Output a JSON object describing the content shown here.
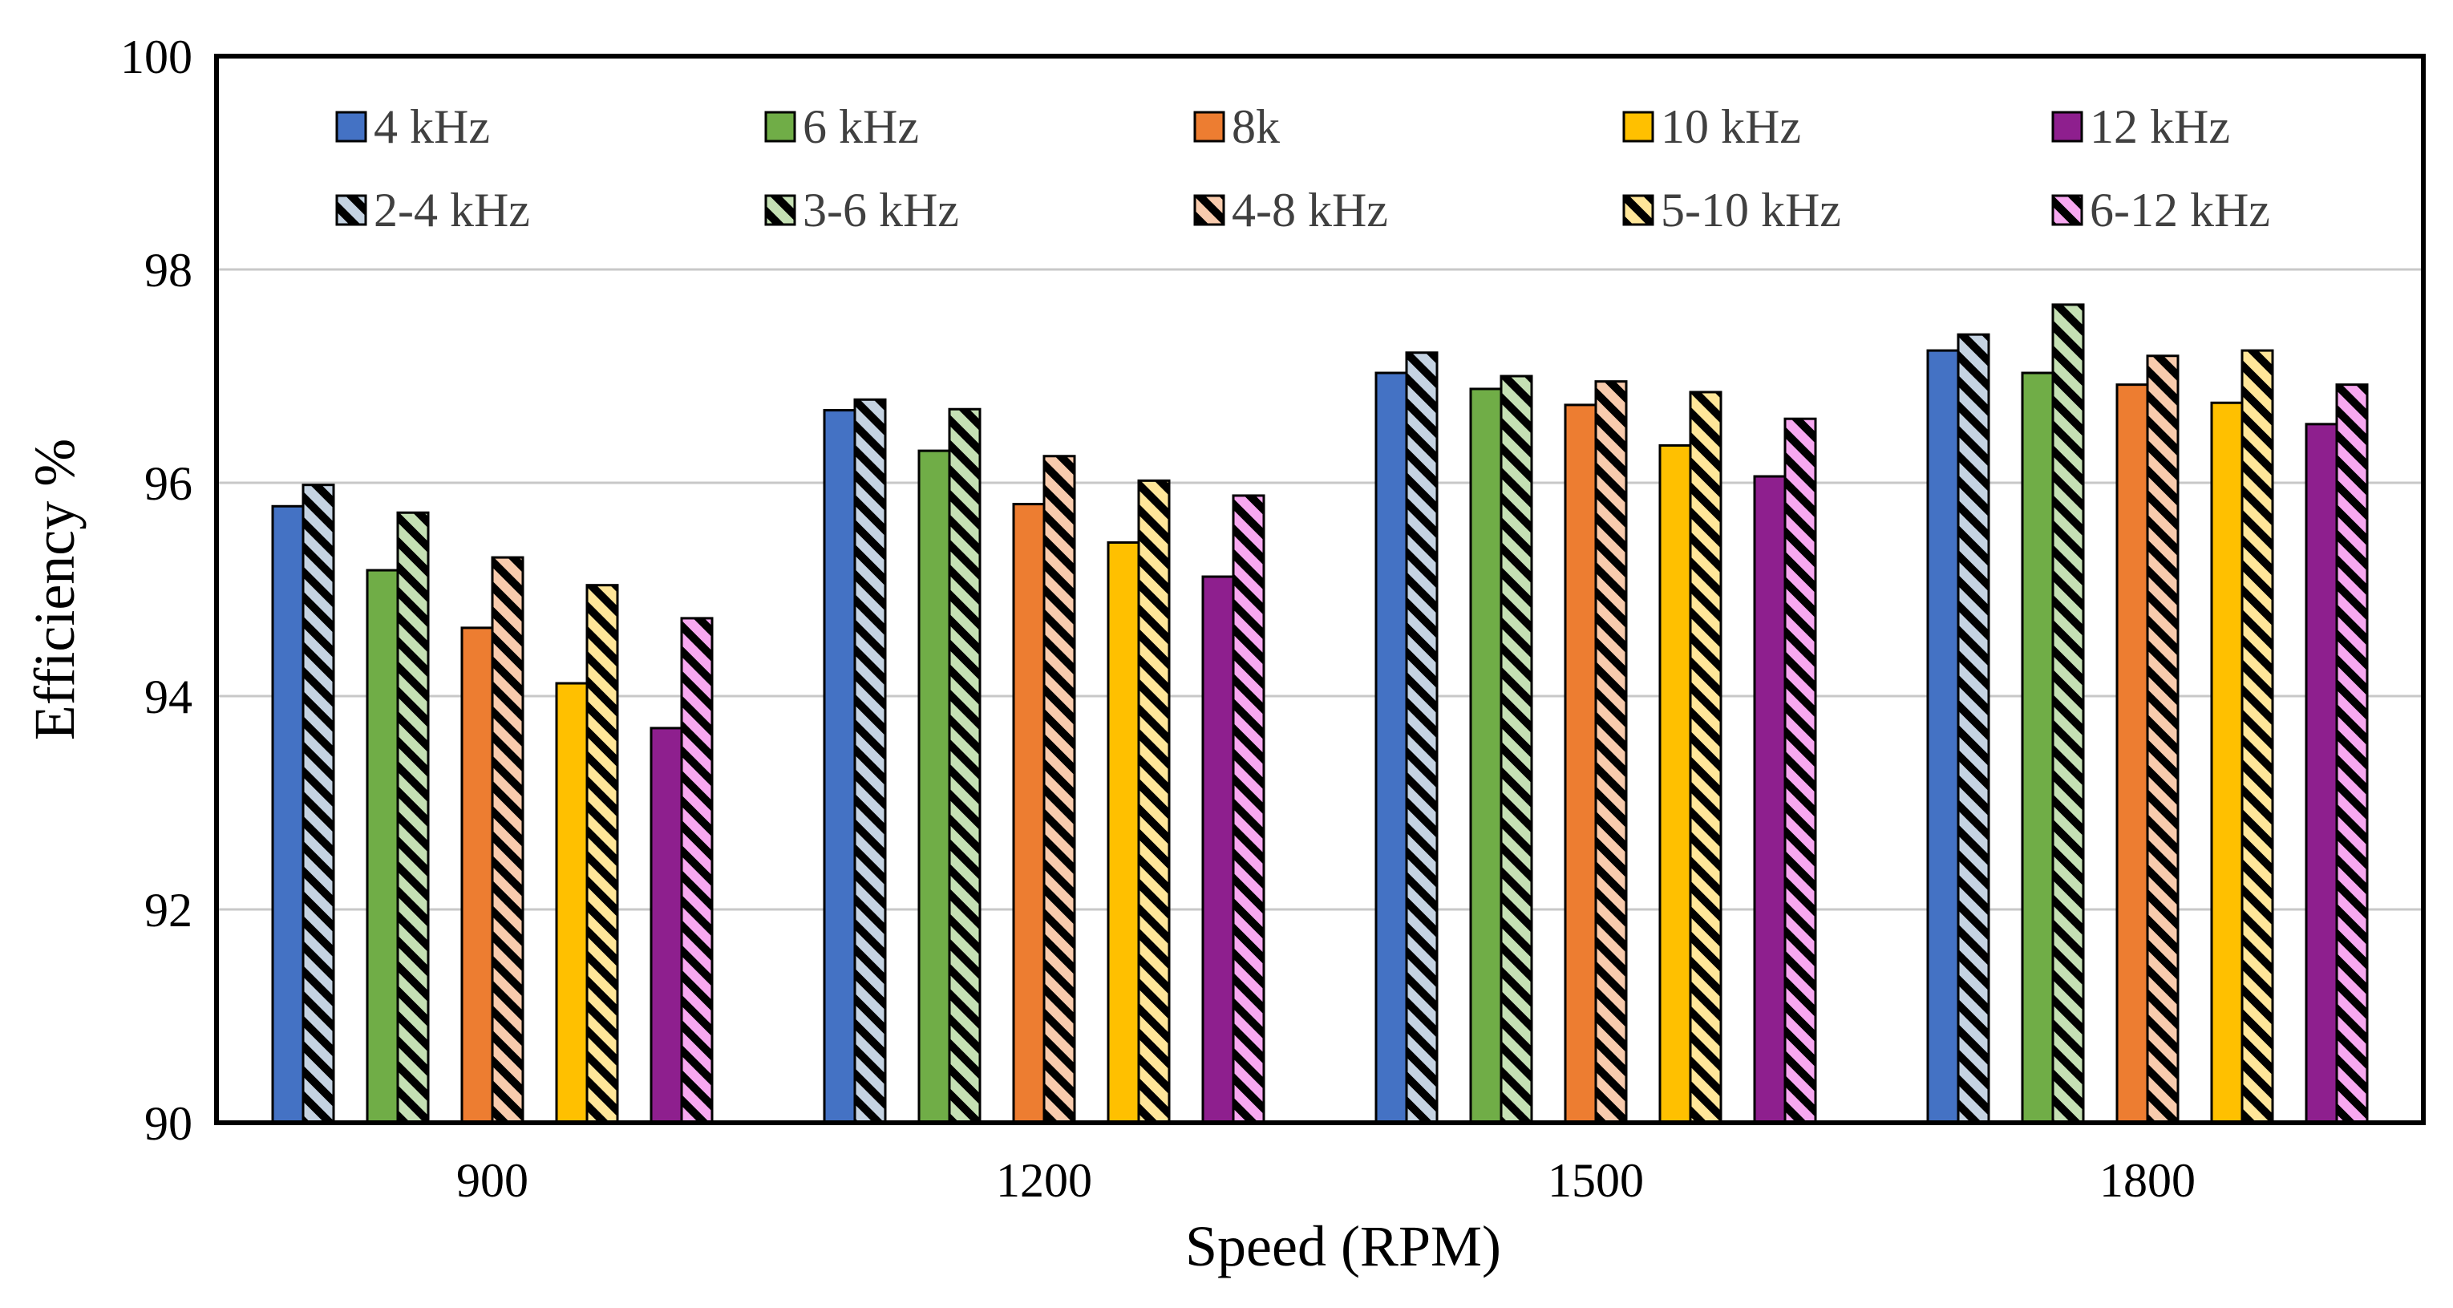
{
  "chart_data": {
    "type": "bar",
    "title": "",
    "xlabel": "Speed (RPM)",
    "ylabel": "Efficiency %",
    "ylim": [
      90,
      100
    ],
    "yticks": [
      "90",
      "92",
      "94",
      "96",
      "98",
      "100"
    ],
    "grid": true,
    "legend_position": "top",
    "categories": [
      "900",
      "1200",
      "1500",
      "1800"
    ],
    "series": [
      {
        "name": "4 kHz",
        "color": "#4472C4",
        "hatched": false,
        "values": [
          95.78,
          96.68,
          97.03,
          97.24
        ]
      },
      {
        "name": "2-4 kHz",
        "color": "#C5D3E2",
        "hatched": true,
        "values": [
          95.98,
          96.78,
          97.22,
          97.39
        ]
      },
      {
        "name": "6 kHz",
        "color": "#70AD47",
        "hatched": false,
        "values": [
          95.18,
          96.3,
          96.88,
          97.03
        ]
      },
      {
        "name": "3-6 kHz",
        "color": "#C5E0B4",
        "hatched": true,
        "values": [
          95.72,
          96.69,
          97.0,
          97.67
        ]
      },
      {
        "name": "8k",
        "color": "#ED7D31",
        "hatched": false,
        "values": [
          94.64,
          95.8,
          96.73,
          96.92
        ]
      },
      {
        "name": "4-8 kHz",
        "color": "#F8CBAD",
        "hatched": true,
        "values": [
          95.3,
          96.25,
          96.95,
          97.19
        ]
      },
      {
        "name": "10 kHz",
        "color": "#FFC000",
        "hatched": false,
        "values": [
          94.12,
          95.44,
          96.35,
          96.75
        ]
      },
      {
        "name": "5-10 kHz",
        "color": "#FFE699",
        "hatched": true,
        "values": [
          95.04,
          96.02,
          96.85,
          97.24
        ]
      },
      {
        "name": "12 kHz",
        "color": "#8E1F8E",
        "hatched": false,
        "values": [
          93.7,
          95.12,
          96.06,
          96.55
        ]
      },
      {
        "name": "6-12 kHz",
        "color": "#F7A8F0",
        "hatched": true,
        "values": [
          94.73,
          95.88,
          96.6,
          96.92
        ]
      }
    ]
  }
}
